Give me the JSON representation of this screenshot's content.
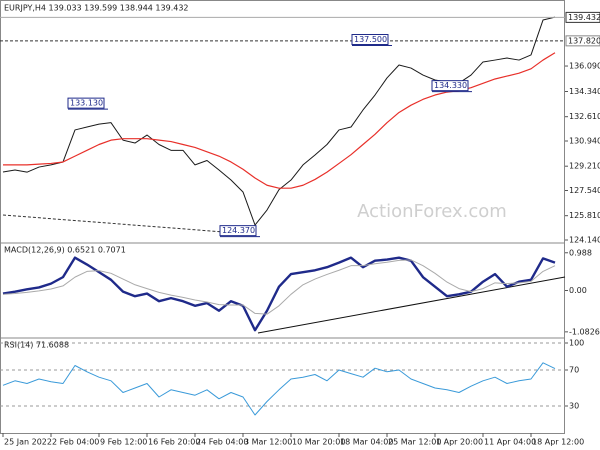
{
  "chart_data": [
    {
      "type": "line",
      "title": "EURJPY,H4 139.033 139.599 138.944 139.432",
      "categories": [
        "25 Jan 2022",
        null,
        null,
        null,
        "2 Feb 04:00",
        null,
        null,
        null,
        "9 Feb 12:00",
        null,
        null,
        null,
        "16 Feb 20:00",
        null,
        null,
        null,
        "24 Feb 04:00",
        null,
        null,
        null,
        "3 Mar 12:00",
        null,
        null,
        null,
        "10 Mar 20:00",
        null,
        null,
        null,
        "18 Mar 04:00",
        null,
        null,
        null,
        "25 Mar 12:00",
        null,
        null,
        null,
        "1 Apr 20:00",
        null,
        null,
        null,
        "11 Apr 04:00",
        null,
        null,
        null,
        "18 Apr 12:00",
        null,
        null
      ],
      "series": [
        {
          "color": "#1a1a1a",
          "values": [
            128.81,
            128.95,
            128.8,
            129.15,
            129.3,
            129.5,
            131.7,
            131.9,
            132.1,
            132.2,
            131.0,
            130.8,
            131.35,
            130.7,
            130.3,
            130.3,
            129.3,
            129.6,
            128.95,
            128.26,
            127.44,
            125.17,
            126.2,
            127.6,
            128.26,
            129.3,
            129.98,
            130.7,
            131.7,
            131.9,
            133.07,
            134.1,
            135.27,
            136.16,
            135.95,
            135.47,
            135.13,
            134.99,
            134.92,
            135.47,
            136.37,
            136.5,
            136.64,
            136.5,
            136.85,
            139.25,
            139.45
          ]
        },
        {
          "color": "#e8302a",
          "values": [
            129.3,
            129.3,
            129.3,
            129.35,
            129.4,
            129.5,
            129.9,
            130.3,
            130.7,
            131.0,
            131.1,
            131.1,
            131.1,
            131.0,
            130.9,
            130.7,
            130.5,
            130.2,
            129.9,
            129.5,
            129.0,
            128.4,
            127.9,
            127.7,
            127.7,
            127.9,
            128.3,
            128.8,
            129.4,
            130.0,
            130.7,
            131.4,
            132.2,
            132.9,
            133.4,
            133.8,
            134.1,
            134.3,
            134.4,
            134.6,
            134.9,
            135.2,
            135.4,
            135.6,
            135.9,
            136.5,
            137.0
          ]
        }
      ],
      "ylim": [
        124.14,
        140.42
      ],
      "yticks": [
        {
          "value": 136.09,
          "label": "136.090"
        },
        {
          "value": 134.34,
          "label": "134.340"
        },
        {
          "value": 132.61,
          "label": "132.610"
        },
        {
          "value": 130.94,
          "label": "130.940"
        },
        {
          "value": 129.21,
          "label": "129.210"
        },
        {
          "value": 127.54,
          "label": "127.540"
        },
        {
          "value": 125.81,
          "label": "125.810"
        },
        {
          "value": 124.14,
          "label": "124.140"
        }
      ],
      "current_price": 139.432,
      "level": {
        "value": 137.82,
        "label": "137.820"
      },
      "annotations": [
        {
          "value": 133.13,
          "label": "133.130"
        },
        {
          "value": 137.5,
          "label": "137.500"
        },
        {
          "value": 134.33,
          "label": "134.330"
        },
        {
          "value": 124.37,
          "label": "124.370"
        }
      ],
      "watermark": "ActionForex.com"
    },
    {
      "type": "line",
      "title": "MACD(12,26,9) 0.6521 0.7071",
      "series": [
        {
          "color": "#1f2a8a",
          "values": [
            -0.08,
            -0.03,
            0.03,
            0.08,
            0.18,
            0.35,
            0.86,
            0.68,
            0.48,
            0.28,
            -0.03,
            -0.15,
            -0.08,
            -0.28,
            -0.2,
            -0.28,
            -0.4,
            -0.33,
            -0.53,
            -0.28,
            -0.4,
            -1.04,
            -0.53,
            0.1,
            0.43,
            0.48,
            0.53,
            0.61,
            0.73,
            0.86,
            0.61,
            0.78,
            0.81,
            0.86,
            0.78,
            0.35,
            0.1,
            -0.15,
            -0.1,
            -0.03,
            0.23,
            0.43,
            0.1,
            0.23,
            0.28,
            0.84,
            0.73
          ]
        },
        {
          "color": "#aaaaaa",
          "values": [
            -0.1,
            -0.08,
            -0.05,
            -0.01,
            0.04,
            0.12,
            0.35,
            0.5,
            0.52,
            0.45,
            0.3,
            0.15,
            0.05,
            -0.05,
            -0.12,
            -0.18,
            -0.25,
            -0.3,
            -0.37,
            -0.38,
            -0.38,
            -0.6,
            -0.62,
            -0.4,
            -0.1,
            0.15,
            0.3,
            0.42,
            0.53,
            0.65,
            0.65,
            0.7,
            0.74,
            0.79,
            0.8,
            0.65,
            0.45,
            0.22,
            0.05,
            -0.03,
            0.05,
            0.2,
            0.18,
            0.2,
            0.24,
            0.5,
            0.65
          ]
        }
      ],
      "ylim": [
        -1.165,
        1.165
      ],
      "yticks": [
        0.988,
        {
          "value": 0,
          "label": "0.00"
        },
        -1.0826
      ]
    },
    {
      "type": "line",
      "title": "RSI(14) 71.6088",
      "series": [
        {
          "color": "#3a9ad9",
          "values": [
            53,
            58,
            55,
            60,
            57,
            55,
            75,
            68,
            62,
            58,
            45,
            50,
            55,
            40,
            48,
            45,
            42,
            48,
            38,
            45,
            40,
            20,
            35,
            48,
            60,
            62,
            65,
            58,
            70,
            66,
            62,
            72,
            68,
            70,
            60,
            55,
            50,
            48,
            45,
            52,
            58,
            62,
            55,
            58,
            60,
            78,
            71.6
          ]
        }
      ],
      "ylim": [
        0,
        100
      ],
      "yticks": [
        100,
        70,
        30
      ],
      "grid": true
    }
  ]
}
